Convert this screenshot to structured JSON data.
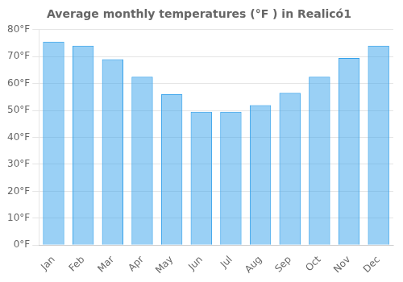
{
  "chart_data": {
    "type": "bar",
    "title": "Average monthly temperatures (°F ) in Realicó1",
    "categories": [
      "Jan",
      "Feb",
      "Mar",
      "Apr",
      "May",
      "Jun",
      "Jul",
      "Aug",
      "Sep",
      "Oct",
      "Nov",
      "Dec"
    ],
    "values": [
      75.5,
      74.0,
      69.0,
      62.5,
      56.0,
      49.5,
      49.5,
      52.0,
      56.5,
      62.5,
      69.5,
      74.0
    ],
    "ylim": [
      0,
      80
    ],
    "yticks": [
      {
        "value": 0,
        "label": "0°F"
      },
      {
        "value": 10,
        "label": "10°F"
      },
      {
        "value": 20,
        "label": "20°F"
      },
      {
        "value": 30,
        "label": "30°F"
      },
      {
        "value": 40,
        "label": "40°F"
      },
      {
        "value": 50,
        "label": "50°F"
      },
      {
        "value": 60,
        "label": "60°F"
      },
      {
        "value": 70,
        "label": "70°F"
      },
      {
        "value": 80,
        "label": "80°F"
      }
    ],
    "grid": true
  }
}
